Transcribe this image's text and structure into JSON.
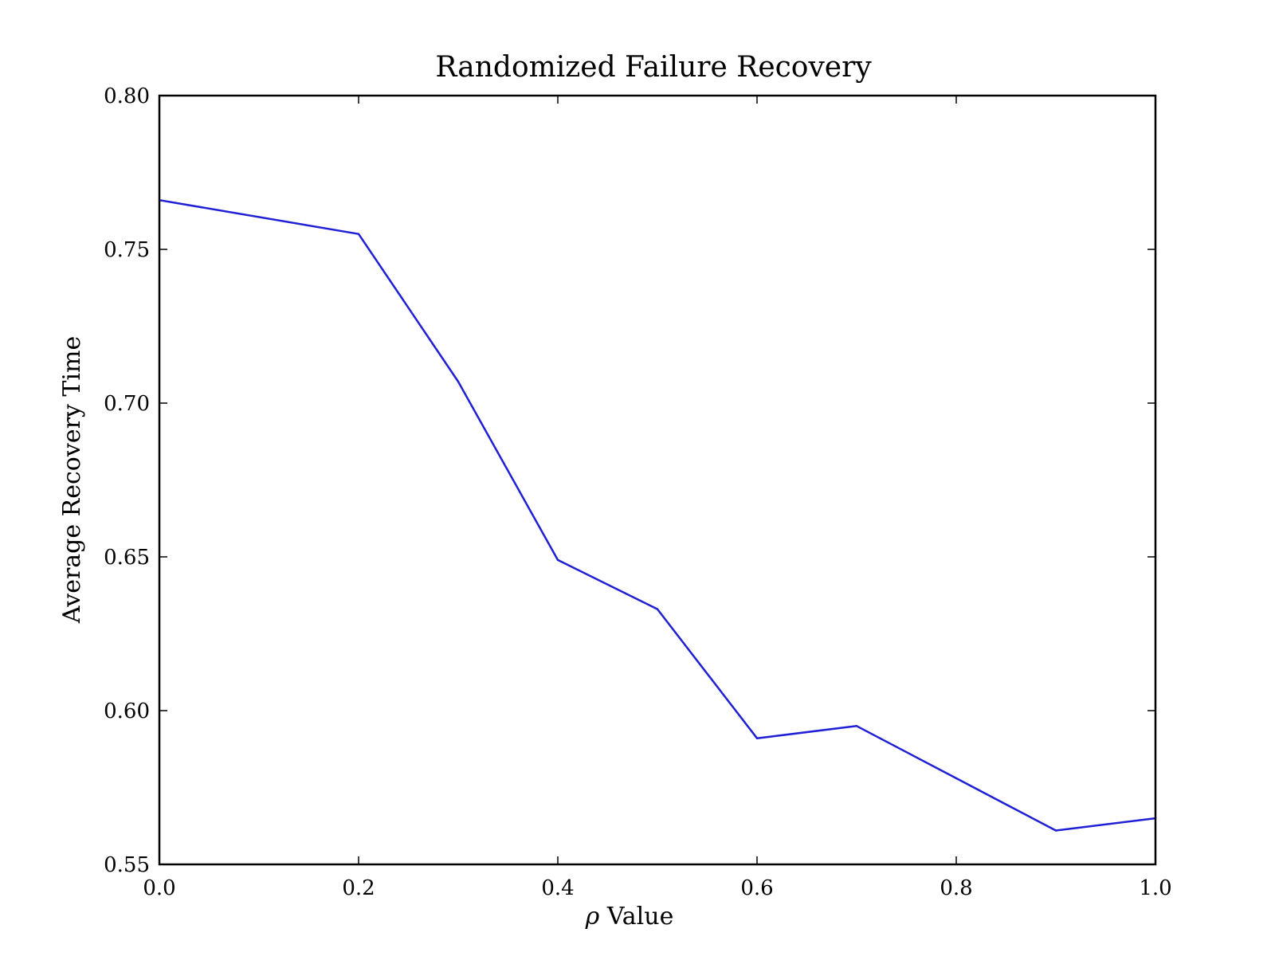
{
  "chart_data": {
    "type": "line",
    "title": "Randomized Failure Recovery",
    "xlabel_symbol": "ρ",
    "xlabel": "Value",
    "ylabel": "Average Recovery Time",
    "xlim": [
      0.0,
      1.0
    ],
    "ylim": [
      0.55,
      0.8
    ],
    "xticks": [
      0.0,
      0.2,
      0.4,
      0.6,
      0.8,
      1.0
    ],
    "xtick_labels": [
      "0.0",
      "0.2",
      "0.4",
      "0.6",
      "0.8",
      "1.0"
    ],
    "yticks": [
      0.55,
      0.6,
      0.65,
      0.7,
      0.75,
      0.8
    ],
    "ytick_labels": [
      "0.55",
      "0.60",
      "0.65",
      "0.70",
      "0.75",
      "0.80"
    ],
    "grid": false,
    "series": [
      {
        "color": "#1f1fd6",
        "x": [
          0.0,
          0.2,
          0.3,
          0.4,
          0.5,
          0.6,
          0.7,
          0.8,
          0.9,
          1.0
        ],
        "y": [
          0.766,
          0.755,
          0.707,
          0.649,
          0.633,
          0.591,
          0.595,
          0.578,
          0.561,
          0.565
        ]
      }
    ]
  }
}
